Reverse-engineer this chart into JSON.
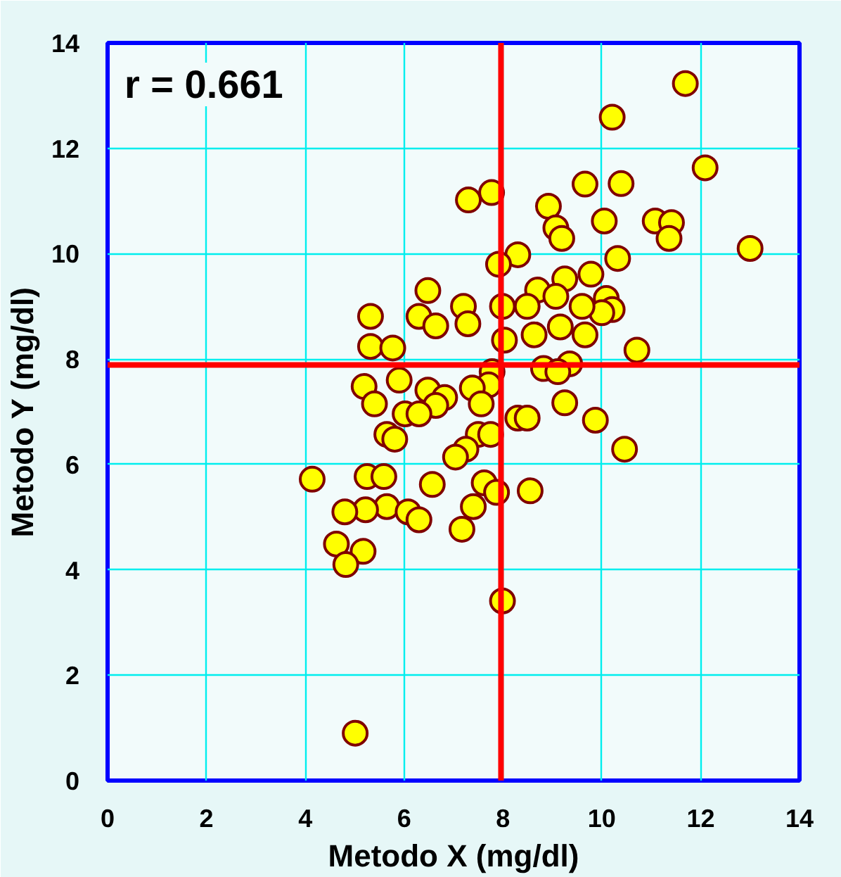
{
  "chart_data": {
    "type": "scatter",
    "xlabel": "Metodo X (mg/dl)",
    "ylabel": "Metodo Y (mg/dl)",
    "annotations": [
      "r = 0.661"
    ],
    "xlim": [
      0,
      14
    ],
    "ylim": [
      0,
      14
    ],
    "xticks": [
      0,
      2,
      4,
      6,
      8,
      10,
      12,
      14
    ],
    "yticks": [
      0,
      2,
      4,
      6,
      8,
      10,
      12,
      14
    ],
    "grid": true,
    "marker": "circle",
    "ref_lines": [
      {
        "axis": "x",
        "value": 7.96,
        "label": null,
        "color": "#ff0000"
      },
      {
        "axis": "y",
        "value": 7.89,
        "label": null,
        "color": "#ff0000"
      }
    ],
    "series": [
      {
        "color": "#ffff00",
        "x": [
          11.69,
          10.21,
          12.09,
          9.66,
          10.39,
          7.77,
          7.3,
          8.92,
          9.07,
          9.19,
          10.05,
          11.08,
          11.41,
          11.36,
          13.0,
          10.32,
          8.3,
          7.91,
          9.78,
          9.25,
          8.7,
          9.07,
          10.09,
          10.21,
          10.0,
          9.6,
          8.49,
          7.99,
          9.16,
          9.66,
          8.63,
          8.03,
          6.48,
          7.2,
          7.29,
          6.3,
          6.64,
          5.32,
          5.32,
          5.77,
          10.71,
          8.82,
          9.35,
          9.11,
          7.78,
          7.71,
          7.38,
          7.56,
          9.25,
          5.19,
          5.4,
          5.9,
          6.48,
          6.82,
          6.64,
          6.02,
          6.3,
          8.3,
          8.49,
          9.87,
          5.65,
          5.81,
          7.5,
          7.75,
          7.25,
          7.04,
          10.46,
          4.14,
          5.25,
          5.59,
          6.57,
          7.62,
          7.87,
          8.55,
          7.4,
          5.65,
          5.22,
          6.08,
          6.3,
          4.8,
          7.17,
          4.63,
          5.17,
          4.82,
          7.99,
          5.01
        ],
        "values": [
          13.23,
          12.59,
          11.63,
          11.32,
          11.33,
          11.16,
          11.02,
          10.9,
          10.49,
          10.29,
          10.62,
          10.62,
          10.59,
          10.29,
          10.1,
          9.91,
          9.98,
          9.8,
          9.61,
          9.52,
          9.31,
          9.19,
          9.15,
          8.94,
          8.88,
          9.0,
          9.0,
          9.0,
          8.61,
          8.46,
          8.46,
          8.36,
          9.3,
          9.0,
          8.67,
          8.81,
          8.63,
          8.81,
          8.24,
          8.21,
          8.17,
          7.82,
          7.91,
          7.76,
          7.76,
          7.51,
          7.45,
          7.15,
          7.17,
          7.48,
          7.15,
          7.6,
          7.41,
          7.27,
          7.12,
          6.96,
          6.96,
          6.88,
          6.88,
          6.84,
          6.57,
          6.48,
          6.57,
          6.57,
          6.29,
          6.14,
          6.29,
          5.72,
          5.77,
          5.77,
          5.62,
          5.65,
          5.47,
          5.5,
          5.2,
          5.2,
          5.14,
          5.1,
          4.95,
          5.1,
          4.77,
          4.49,
          4.35,
          4.1,
          3.41,
          0.9
        ]
      }
    ]
  }
}
